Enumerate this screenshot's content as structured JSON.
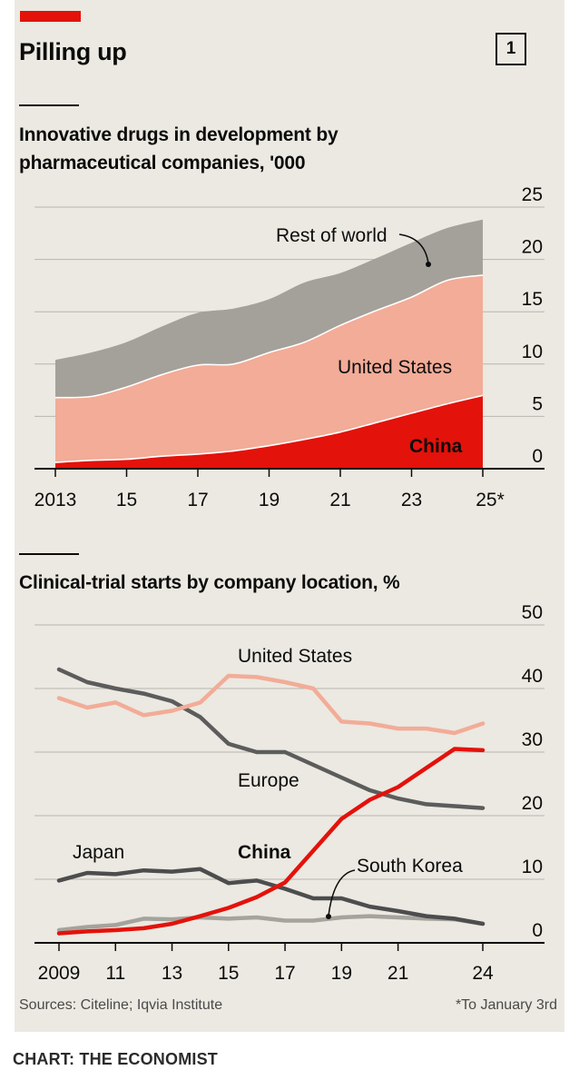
{
  "header": {
    "title": "Pilling up",
    "chart_number": "1"
  },
  "footer": {
    "sources": "Sources: Citeline; Iqvia Institute",
    "footnote": "*To January 3rd",
    "credit": "CHART: THE ECONOMIST"
  },
  "colors": {
    "china": "#e3120b",
    "united_states_area": "#f2ac98",
    "rest_area": "#a3a199",
    "us_line": "#f2ac98",
    "europe_line": "#5c5c5c",
    "japan_line": "#4d4d4f",
    "korea_line": "#a4a39c",
    "grid": "#b7b5ad"
  },
  "chart_data": [
    {
      "type": "area",
      "stacked": true,
      "title": "Innovative drugs in development by pharmaceutical companies, '000",
      "x": [
        2013,
        2014,
        2015,
        2016,
        2017,
        2018,
        2019,
        2020,
        2021,
        2022,
        2023,
        2024,
        2025
      ],
      "x_tick_values": [
        2013,
        2015,
        2017,
        2019,
        2021,
        2023,
        2025
      ],
      "x_tick_labels": [
        "2013",
        "15",
        "17",
        "19",
        "21",
        "23",
        "25*"
      ],
      "ylim": [
        0,
        25
      ],
      "y_ticks": [
        "0",
        "5",
        "10",
        "15",
        "20",
        "25"
      ],
      "y_axis_side": "right",
      "series": [
        {
          "name": "China",
          "color": "#e3120b",
          "values": [
            0.6,
            0.8,
            0.9,
            1.2,
            1.4,
            1.7,
            2.2,
            2.8,
            3.5,
            4.4,
            5.3,
            6.2,
            7.0
          ]
        },
        {
          "name": "United States",
          "color": "#f2ac98",
          "values": [
            6.2,
            6.1,
            6.9,
            7.8,
            8.5,
            8.3,
            8.9,
            9.3,
            10.2,
            10.7,
            11.1,
            11.8,
            11.5
          ]
        },
        {
          "name": "Rest of world",
          "color": "#a3a199",
          "values": [
            3.6,
            4.2,
            4.3,
            4.6,
            5.0,
            5.3,
            5.1,
            5.7,
            5.0,
            5.0,
            5.2,
            5.0,
            5.3
          ]
        }
      ],
      "labels": {
        "rest_of_world": "Rest of world",
        "united_states": "United States",
        "china": "China"
      }
    },
    {
      "type": "line",
      "title": "Clinical-trial starts by company location, %",
      "x": [
        2009,
        2010,
        2011,
        2012,
        2013,
        2014,
        2015,
        2016,
        2017,
        2018,
        2019,
        2020,
        2021,
        2022,
        2023,
        2024
      ],
      "x_tick_values": [
        2009,
        2011,
        2013,
        2015,
        2017,
        2019,
        2021,
        2024
      ],
      "x_tick_labels": [
        "2009",
        "11",
        "13",
        "15",
        "17",
        "19",
        "21",
        "24"
      ],
      "ylim": [
        0,
        50
      ],
      "y_ticks": [
        "0",
        "10",
        "20",
        "30",
        "40",
        "50"
      ],
      "y_axis_side": "right",
      "series": [
        {
          "name": "United States",
          "color": "#f2ac98",
          "values": [
            38.5,
            37.0,
            37.8,
            35.8,
            36.5,
            37.8,
            42.0,
            41.8,
            41.0,
            40.0,
            34.8,
            34.5,
            33.7,
            33.7,
            33.0,
            34.5
          ]
        },
        {
          "name": "Europe",
          "color": "#5c5c5c",
          "values": [
            43.0,
            41.0,
            40.0,
            39.2,
            38.0,
            35.5,
            31.3,
            30.0,
            30.0,
            28.0,
            26.0,
            24.0,
            22.7,
            21.8,
            21.5,
            21.2
          ]
        },
        {
          "name": "Japan",
          "color": "#4d4d4f",
          "values": [
            9.8,
            11.0,
            10.8,
            11.4,
            11.2,
            11.6,
            9.4,
            9.8,
            8.5,
            7.0,
            7.0,
            5.7,
            5.0,
            4.2,
            3.8,
            3.0
          ]
        },
        {
          "name": "South Korea",
          "color": "#a4a39c",
          "values": [
            2.0,
            2.5,
            2.8,
            3.8,
            3.7,
            4.0,
            3.8,
            4.0,
            3.5,
            3.5,
            4.0,
            4.2,
            4.0,
            3.8,
            3.7,
            3.0
          ]
        },
        {
          "name": "China",
          "color": "#e3120b",
          "values": [
            1.5,
            1.8,
            2.0,
            2.3,
            3.0,
            4.2,
            5.5,
            7.2,
            9.5,
            14.5,
            19.5,
            22.5,
            24.5,
            27.5,
            30.5,
            30.3
          ]
        }
      ],
      "labels": {
        "united_states": "United States",
        "europe": "Europe",
        "japan": "Japan",
        "china": "China",
        "south_korea": "South Korea"
      }
    }
  ]
}
